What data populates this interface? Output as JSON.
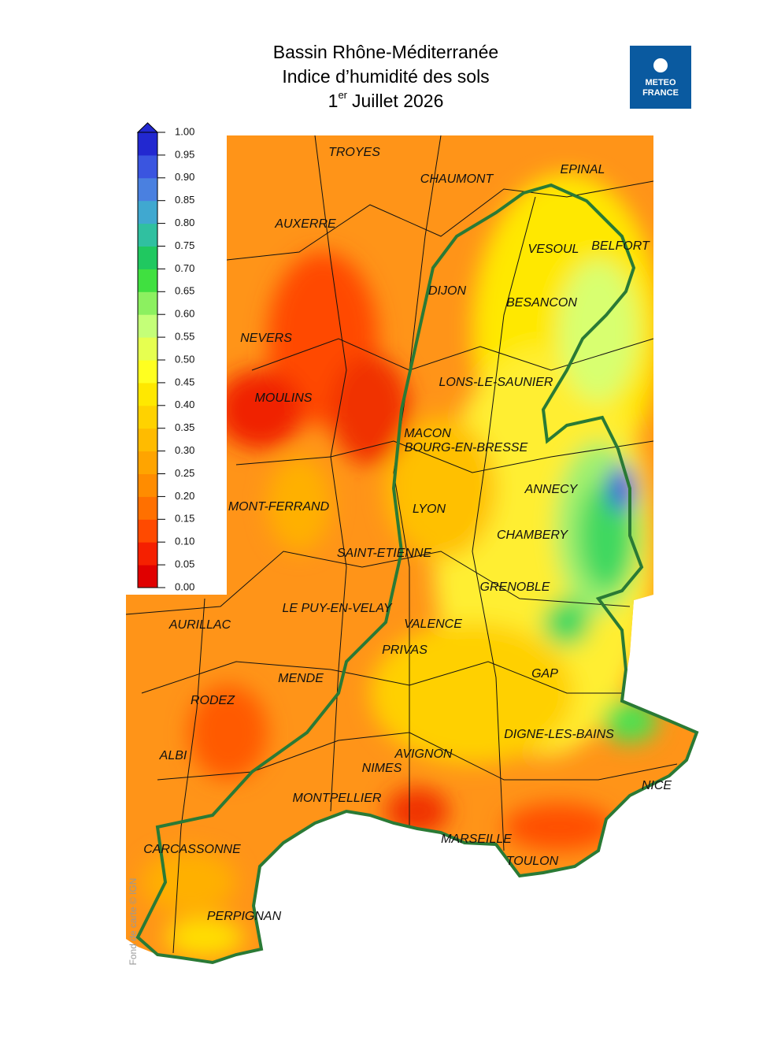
{
  "header": {
    "title_line1": "Bassin Rhône-Méditerranée",
    "title_line2": "Indice d’humidité des sols",
    "title_line3": {
      "day": "1",
      "suffix": "er",
      "rest": "Juillet 2026"
    }
  },
  "logo": {
    "line1": "METEO",
    "line2": "FRANCE"
  },
  "legend": {
    "ticks": [
      {
        "value": 0,
        "label": "0.00"
      },
      {
        "value": 0.05,
        "label": "0.05"
      },
      {
        "value": 0.1,
        "label": "0.10"
      },
      {
        "value": 0.15,
        "label": "0.15"
      },
      {
        "value": 0.2,
        "label": "0.20"
      },
      {
        "value": 0.25,
        "label": "0.25"
      },
      {
        "value": 0.3,
        "label": "0.30"
      },
      {
        "value": 0.35,
        "label": "0.35"
      },
      {
        "value": 0.4,
        "label": "0.40"
      },
      {
        "value": 0.45,
        "label": "0.45"
      },
      {
        "value": 0.5,
        "label": "0.50"
      },
      {
        "value": 0.55,
        "label": "0.55"
      },
      {
        "value": 0.6,
        "label": "0.60"
      },
      {
        "value": 0.65,
        "label": "0.65"
      },
      {
        "value": 0.7,
        "label": "0.70"
      },
      {
        "value": 0.75,
        "label": "0.75"
      },
      {
        "value": 0.8,
        "label": "0.80"
      },
      {
        "value": 0.85,
        "label": "0.85"
      },
      {
        "value": 0.9,
        "label": "0.90"
      },
      {
        "value": 0.95,
        "label": "0.95"
      },
      {
        "value": 1,
        "label": "1.00"
      }
    ],
    "colors": [
      "#e00000",
      "#f52000",
      "#ff4a00",
      "#ff7000",
      "#ff8c00",
      "#ffa400",
      "#ffbb00",
      "#ffd200",
      "#ffe800",
      "#ffff20",
      "#e6ff50",
      "#c4ff78",
      "#8cf060",
      "#40e040",
      "#20c860",
      "#30c0a0",
      "#40a8d0",
      "#4a80e0",
      "#3a55e0",
      "#2228d0"
    ]
  },
  "cities": [
    "TROYES",
    "CHAUMONT",
    "EPINAL",
    "AUXERRE",
    "VESOUL",
    "BELFORT",
    "DIJON",
    "BESANCON",
    "NEVERS",
    "LONS-LE-SAUNIER",
    "MOULINS",
    "MACON",
    "BOURG-EN-BRESSE",
    "ANNECY",
    "MONT-FERRAND",
    "LYON",
    "CHAMBERY",
    "SAINT-ETIENNE",
    "GRENOBLE",
    "LE PUY-EN-VELAY",
    "AURILLAC",
    "VALENCE",
    "PRIVAS",
    "GAP",
    "MENDE",
    "RODEZ",
    "DIGNE-LES-BAINS",
    "ALBI",
    "AVIGNON",
    "NIMES",
    "NICE",
    "MONTPELLIER",
    "CARCASSONNE",
    "MARSEILLE",
    "TOULON",
    "PERPIGNAN"
  ],
  "credit": "Fond de carte © IGN"
}
